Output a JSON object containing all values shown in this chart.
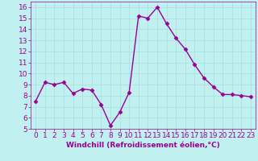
{
  "x": [
    0,
    1,
    2,
    3,
    4,
    5,
    6,
    7,
    8,
    9,
    10,
    11,
    12,
    13,
    14,
    15,
    16,
    17,
    18,
    19,
    20,
    21,
    22,
    23
  ],
  "y": [
    7.5,
    9.2,
    9.0,
    9.2,
    8.2,
    8.6,
    8.5,
    7.2,
    5.3,
    6.5,
    8.3,
    15.2,
    15.0,
    16.0,
    14.5,
    13.2,
    12.2,
    10.8,
    9.6,
    8.8,
    8.1,
    8.1,
    8.0,
    7.9
  ],
  "line_color": "#990099",
  "marker": "D",
  "marker_size": 2.5,
  "bg_color": "#c0f0f0",
  "grid_color": "#aadddd",
  "xlabel": "Windchill (Refroidissement éolien,°C)",
  "xlim": [
    -0.5,
    23.5
  ],
  "ylim": [
    5,
    16.5
  ],
  "yticks": [
    5,
    6,
    7,
    8,
    9,
    10,
    11,
    12,
    13,
    14,
    15,
    16
  ],
  "xticks": [
    0,
    1,
    2,
    3,
    4,
    5,
    6,
    7,
    8,
    9,
    10,
    11,
    12,
    13,
    14,
    15,
    16,
    17,
    18,
    19,
    20,
    21,
    22,
    23
  ],
  "xlabel_fontsize": 6.5,
  "tick_fontsize": 6.5,
  "line_width": 1.0
}
